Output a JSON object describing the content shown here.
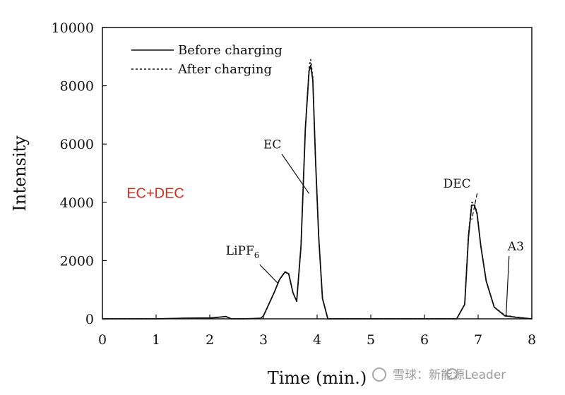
{
  "chart_data": {
    "type": "line",
    "xlabel": "Time (min.)",
    "ylabel": "Intensity",
    "xlim": [
      0,
      8
    ],
    "ylim": [
      0,
      10000
    ],
    "x_ticks": [
      0,
      1,
      2,
      3,
      4,
      5,
      6,
      7,
      8
    ],
    "y_ticks": [
      0,
      2000,
      4000,
      6000,
      8000,
      10000
    ],
    "x_tick_labels": [
      "0",
      "1",
      "2",
      "3",
      "4",
      "5",
      "6",
      "7",
      "8"
    ],
    "y_tick_labels": [
      "0",
      "2000",
      "4000",
      "6000",
      "8000",
      "10000"
    ],
    "grid": false,
    "legend_position": "top-left",
    "series": [
      {
        "name": "Before charging",
        "style": "solid",
        "x": [
          0,
          0.5,
          1.0,
          1.5,
          2.0,
          2.2,
          2.3,
          2.4,
          2.6,
          2.8,
          2.95,
          3.0,
          3.1,
          3.2,
          3.3,
          3.4,
          3.47,
          3.55,
          3.62,
          3.7,
          3.78,
          3.85,
          3.88,
          3.92,
          3.97,
          4.03,
          4.1,
          4.2,
          4.5,
          5.0,
          6.0,
          6.6,
          6.75,
          6.82,
          6.88,
          6.93,
          6.98,
          7.05,
          7.15,
          7.3,
          7.5,
          7.6,
          7.7,
          8.0
        ],
        "y": [
          0,
          0,
          0,
          20,
          30,
          60,
          80,
          0,
          0,
          10,
          20,
          100,
          500,
          900,
          1350,
          1600,
          1550,
          900,
          600,
          2500,
          6500,
          8500,
          8700,
          8200,
          5500,
          2800,
          700,
          0,
          0,
          0,
          0,
          0,
          500,
          2800,
          3900,
          3900,
          3600,
          2500,
          1300,
          400,
          100,
          80,
          50,
          0
        ]
      },
      {
        "name": "After charging",
        "style": "dashed",
        "x": [
          0,
          0.5,
          1.0,
          1.5,
          2.0,
          2.2,
          2.3,
          2.4,
          2.6,
          2.8,
          2.95,
          3.0,
          3.1,
          3.2,
          3.3,
          3.4,
          3.47,
          3.55,
          3.62,
          3.7,
          3.78,
          3.85,
          3.88,
          3.92,
          3.97,
          4.03,
          4.1,
          4.2,
          4.5,
          5.0,
          6.0,
          6.6,
          6.75,
          6.82,
          6.88,
          6.93,
          6.98,
          7.05,
          7.15,
          7.3,
          7.5,
          7.6,
          7.7,
          8.0
        ],
        "y": [
          0,
          0,
          0,
          20,
          30,
          60,
          80,
          0,
          0,
          10,
          20,
          100,
          500,
          900,
          1350,
          1620,
          1560,
          900,
          600,
          2500,
          6500,
          8600,
          8900,
          8300,
          5500,
          2800,
          700,
          0,
          0,
          0,
          0,
          0,
          500,
          2900,
          4000,
          3950,
          3650,
          2500,
          1300,
          400,
          120,
          90,
          60,
          0
        ]
      }
    ],
    "annotations": [
      {
        "text": "EC",
        "x": 3.85,
        "y": 4300,
        "label_x": 3.0,
        "label_y": 5850
      },
      {
        "text": "DEC",
        "x": 6.88,
        "y": 3400,
        "label_x": 6.35,
        "label_y": 4500
      },
      {
        "text": "A3",
        "x": 7.52,
        "y": 80,
        "label_x": 7.55,
        "label_y": 2350
      },
      {
        "text": "LiPF",
        "subscript": "6",
        "x": 3.28,
        "y": 1200,
        "label_x": 2.3,
        "label_y": 2200
      }
    ],
    "overlay_text": {
      "text": "EC+DEC",
      "color": "#d42a1e",
      "x": 0.45,
      "y": 4150
    }
  },
  "watermark": {
    "text": "雪球：新能源Leader"
  }
}
